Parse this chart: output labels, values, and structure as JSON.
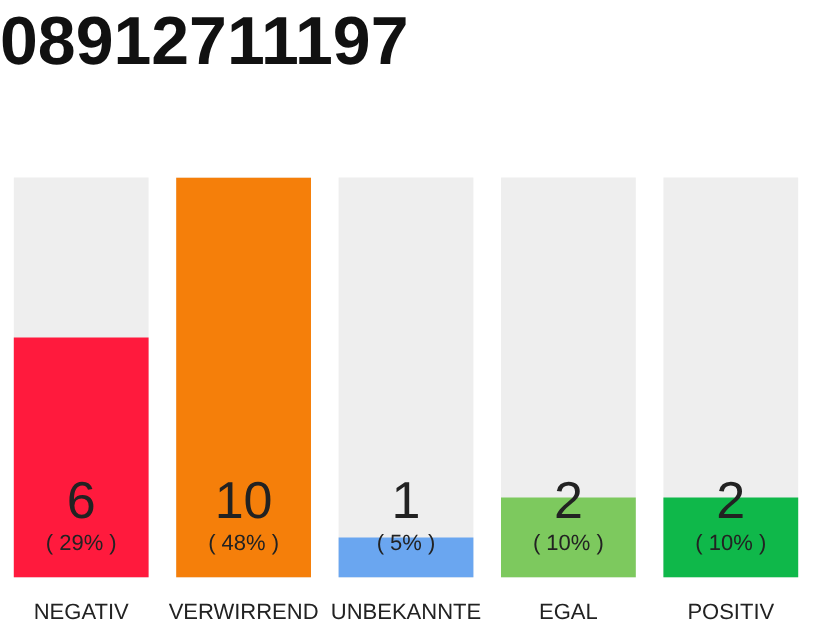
{
  "chart_data": {
    "type": "bar",
    "title": "08912711197",
    "categories": [
      "NEGATIV",
      "VERWIRREND",
      "UNBEKANNTE",
      "EGAL",
      "POSITIV"
    ],
    "values": [
      6,
      10,
      1,
      2,
      2
    ],
    "colors": [
      "#ff1a3d",
      "#f57f0a",
      "#6aa6f0",
      "#7dc95e",
      "#0fb84a"
    ],
    "ylim": [
      0,
      10
    ],
    "data_labels": true,
    "annotations": [
      "( 29% )",
      "( 48% )",
      "( 5% )",
      "( 10% )",
      "( 10% )"
    ],
    "grid": false,
    "legend": false
  }
}
